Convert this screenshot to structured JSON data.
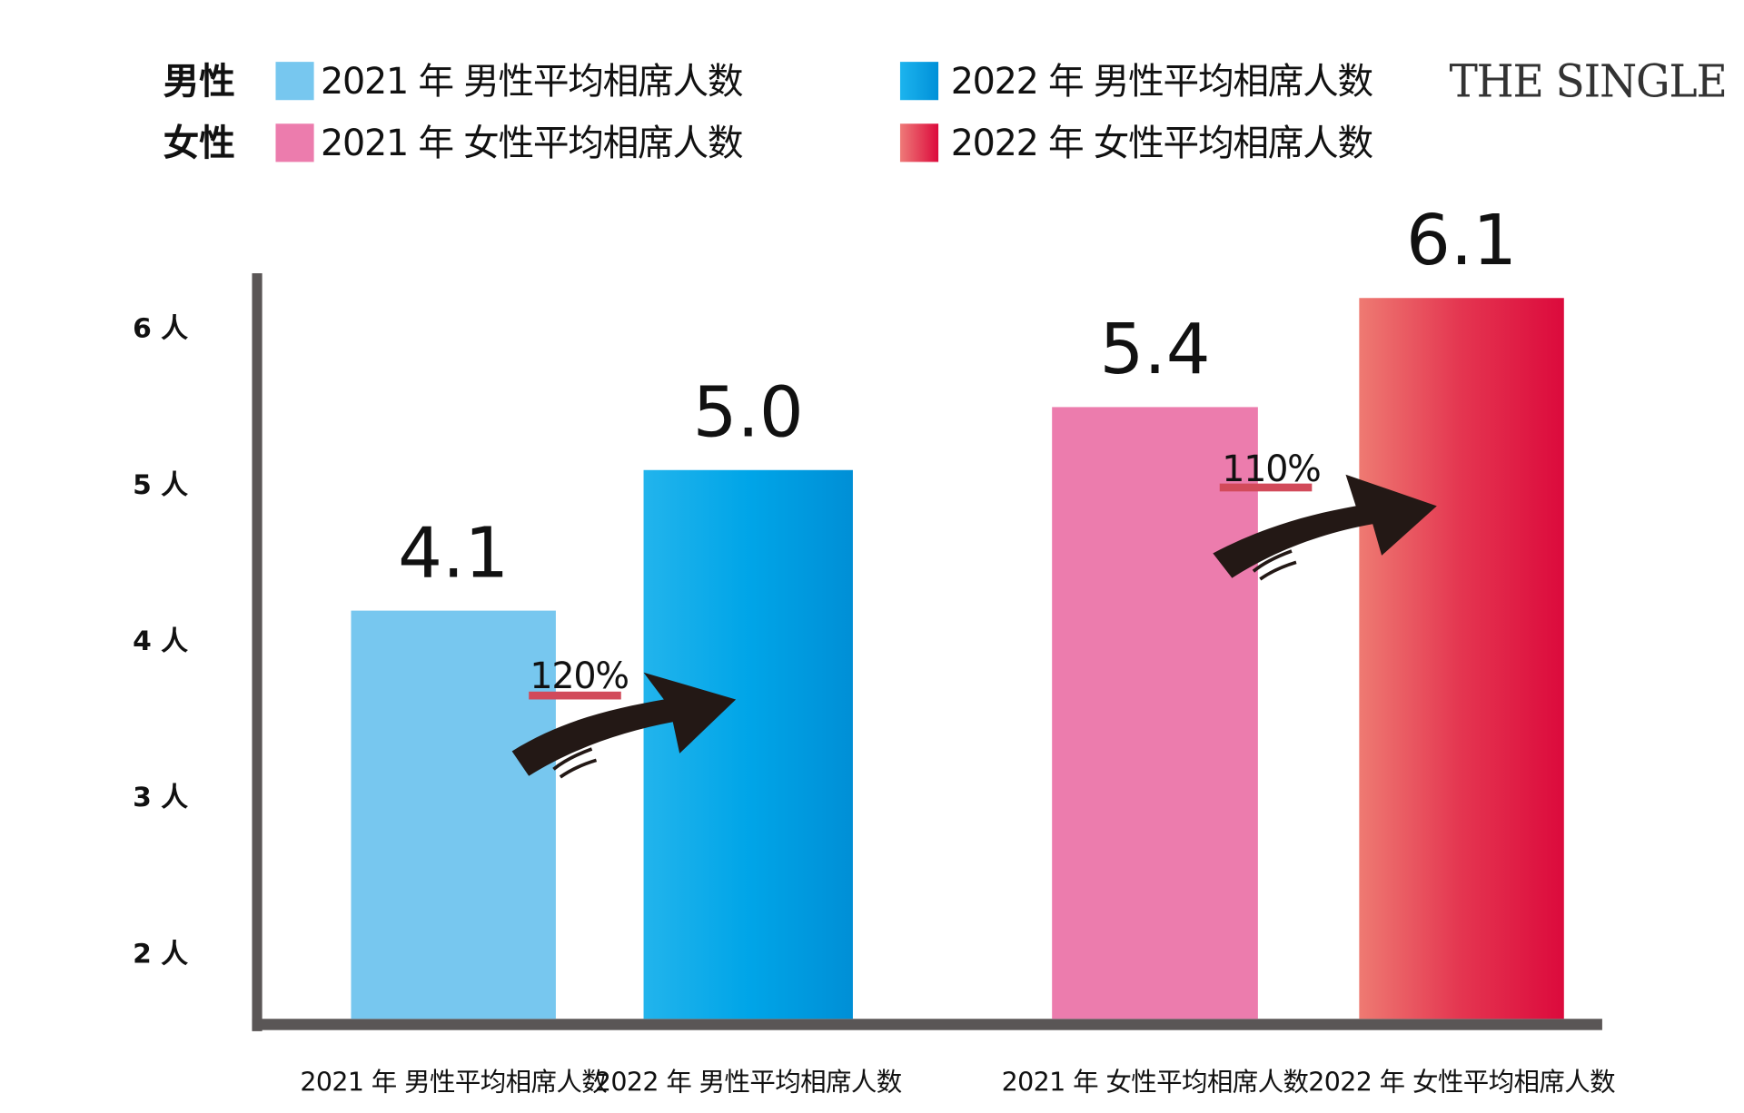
{
  "legend": {
    "group_male": "男性",
    "group_female": "女性",
    "items": [
      {
        "label": "2021 年 男性平均相席人数",
        "color": "#77c7ef"
      },
      {
        "label": "2022 年 男性平均相席人数",
        "color": "#00a0e6"
      },
      {
        "label": "2021 年 女性平均相席人数",
        "color": "#ec7cad"
      },
      {
        "label": "2022 年 女性平均相席人数",
        "color": "#dc0a3c"
      }
    ]
  },
  "logo": "THE SINGLE",
  "chart_data": {
    "type": "bar",
    "categories": [
      "2021 年 男性平均相席人数",
      "2022 年 男性平均相席人数",
      "2021 年 女性平均相席人数",
      "2022 年 女性平均相席人数"
    ],
    "values": [
      4.1,
      5.0,
      5.4,
      6.1
    ],
    "value_labels": [
      "4.1",
      "5.0",
      "5.4",
      "6.1"
    ],
    "ytick_labels": [
      "6 人",
      "5 人",
      "4 人",
      "3 人",
      "2 人"
    ],
    "ytick_values": [
      6,
      5,
      4,
      3,
      2
    ],
    "ylim": [
      1.55,
      6.5
    ],
    "grid": false,
    "legend_position": "top",
    "annotations": [
      {
        "text": "120%",
        "from": "2021 年 男性平均相席人数",
        "to": "2022 年 男性平均相席人数"
      },
      {
        "text": "110%",
        "from": "2021 年 女性平均相席人数",
        "to": "2022 年 女性平均相席人数"
      }
    ]
  }
}
